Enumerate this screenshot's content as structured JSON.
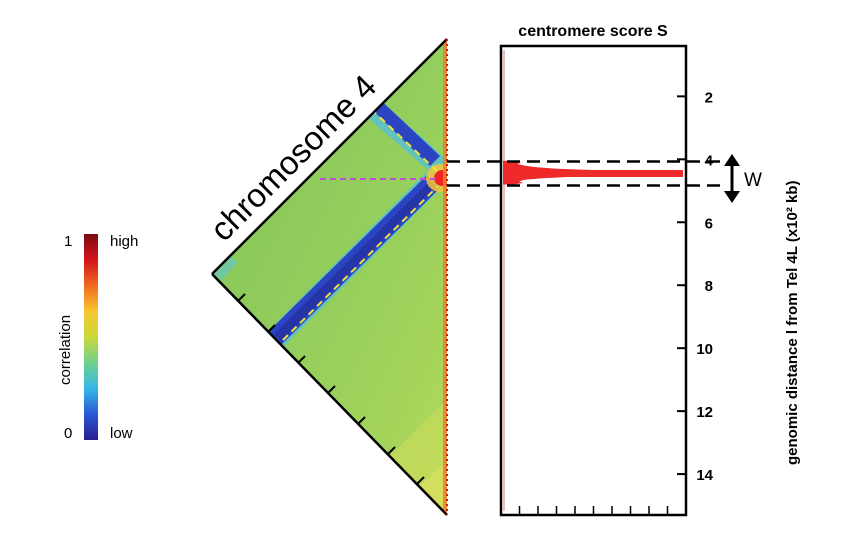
{
  "chart_data": [
    {
      "type": "heatmap",
      "title": "chromosome 4",
      "colorbar": {
        "label": "correlation",
        "min_label": "0",
        "max_label": "1",
        "low_label": "low",
        "high_label": "high",
        "colors": [
          "#2a1f8f",
          "#2b57d6",
          "#35b8e8",
          "#6fd18a",
          "#c9d93a",
          "#f7c531",
          "#ef6a21",
          "#d4141a",
          "#7a0c12"
        ]
      },
      "colors": {
        "background": "#8fc95a",
        "low_band": "#2b45c2",
        "annotation_dashed": "#f2e23a",
        "centromere_line": "#c34bd8",
        "hotspot": "#ef2424"
      }
    },
    {
      "type": "area",
      "title": "centromere score S",
      "ylabel": "genomic distance l from Tel 4L (x10² kb)",
      "yticks": [
        2,
        4,
        6,
        8,
        10,
        12,
        14
      ],
      "ylim": [
        0.4,
        15.3
      ],
      "window_label": "W",
      "window": [
        4.07,
        4.83
      ],
      "peak_position": 4.45,
      "series_color": "#ee2a2a",
      "profile": [
        {
          "pos": 4.05,
          "S": 0.05
        },
        {
          "pos": 4.1,
          "S": 0.1
        },
        {
          "pos": 4.15,
          "S": 0.08
        },
        {
          "pos": 4.2,
          "S": 0.12
        },
        {
          "pos": 4.25,
          "S": 0.18
        },
        {
          "pos": 4.3,
          "S": 0.3
        },
        {
          "pos": 4.35,
          "S": 0.55
        },
        {
          "pos": 4.4,
          "S": 0.82
        },
        {
          "pos": 4.45,
          "S": 1.0
        },
        {
          "pos": 4.5,
          "S": 0.76
        },
        {
          "pos": 4.55,
          "S": 0.4
        },
        {
          "pos": 4.6,
          "S": 0.22
        },
        {
          "pos": 4.65,
          "S": 0.12
        },
        {
          "pos": 4.7,
          "S": 0.09
        },
        {
          "pos": 4.75,
          "S": 0.11
        },
        {
          "pos": 4.8,
          "S": 0.06
        }
      ]
    }
  ]
}
